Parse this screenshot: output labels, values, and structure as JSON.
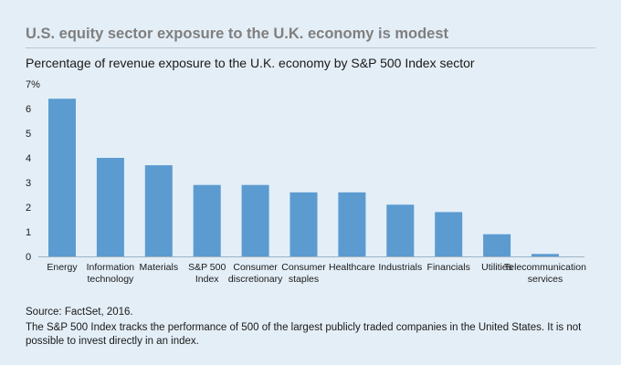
{
  "header": {
    "title": "U.S. equity sector exposure to the U.K. economy is modest",
    "subtitle": "Percentage of revenue exposure to the U.K. economy by S&P 500 Index sector"
  },
  "chart_data": {
    "type": "bar",
    "y_unit_label": "7%",
    "ylim": [
      0,
      7
    ],
    "yticks": [
      0,
      1,
      2,
      3,
      4,
      5,
      6
    ],
    "bar_color": "#5b9bd0",
    "categories": [
      [
        "Energy"
      ],
      [
        "Information",
        "technology"
      ],
      [
        "Materials"
      ],
      [
        "S&P 500",
        "Index"
      ],
      [
        "Consumer",
        "discretionary"
      ],
      [
        "Consumer",
        "staples"
      ],
      [
        "Healthcare"
      ],
      [
        "Industrials"
      ],
      [
        "Financials"
      ],
      [
        "Utilities"
      ],
      [
        "Telecommunication",
        "services"
      ]
    ],
    "values": [
      6.4,
      4.0,
      3.7,
      2.9,
      2.9,
      2.6,
      2.6,
      2.1,
      1.8,
      0.9,
      0.1
    ]
  },
  "footer": {
    "source": "Source: FactSet, 2016.",
    "note": "The S&P 500 Index tracks the performance of 500 of the largest publicly traded companies in the United States. It is not possible to invest directly in an index."
  }
}
